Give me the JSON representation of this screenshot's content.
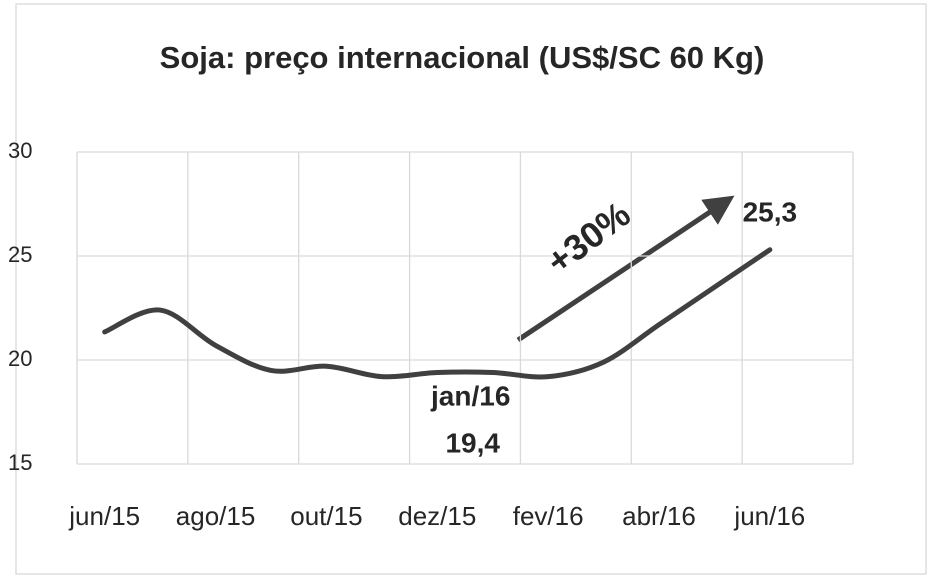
{
  "chart_data": {
    "type": "line",
    "title": "Soja: preço internacional (US$/SC 60 Kg)",
    "categories": [
      "jun/15",
      null,
      "ago/15",
      null,
      "out/15",
      null,
      "dez/15",
      null,
      "fev/16",
      null,
      "abr/16",
      null,
      "jun/16",
      null
    ],
    "values": [
      21.35,
      22.4,
      20.7,
      19.5,
      19.7,
      19.2,
      19.4,
      19.4,
      19.2,
      19.9,
      21.7,
      23.5,
      25.3,
      null
    ],
    "color": "#404040",
    "ylim": [
      15,
      30
    ],
    "yticks": [
      15,
      20,
      25,
      30
    ],
    "grid": true,
    "annotations": [
      {
        "text": "jan/16",
        "index": 7
      },
      {
        "text": "19,4",
        "index": 7
      },
      {
        "text": "25,3",
        "index": 12
      },
      {
        "text": "+30%"
      }
    ]
  }
}
